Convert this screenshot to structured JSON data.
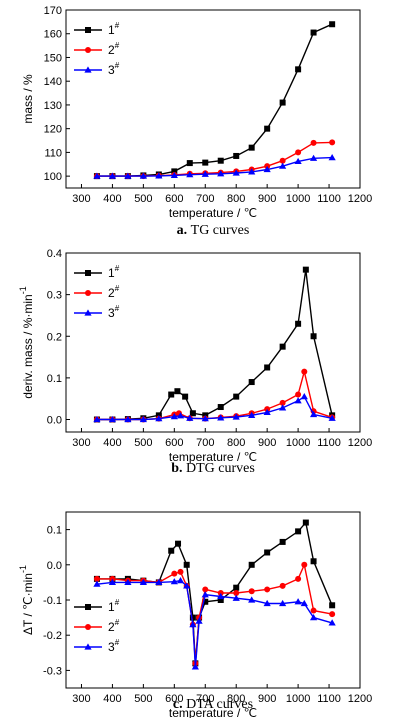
{
  "chart_data": [
    {
      "type": "line",
      "caption_letter": "a.",
      "caption_text": "TG curves",
      "xlabel": "temperature / ℃",
      "ylabel": "mass / %",
      "xlim": [
        250,
        1200
      ],
      "ylim": [
        95,
        170
      ],
      "xticks": [
        300,
        400,
        500,
        600,
        700,
        800,
        900,
        1000,
        1100,
        1200
      ],
      "yticks": [
        100,
        110,
        120,
        130,
        140,
        150,
        160,
        170
      ],
      "ytick_labels": [
        "100",
        "110",
        "120",
        "130",
        "140",
        "150",
        "160",
        "170"
      ],
      "legend_position": "top-left",
      "grid": false,
      "series": [
        {
          "name": "1#",
          "sup": "#",
          "base": "1",
          "color": "#000000",
          "marker": "square",
          "x": [
            350,
            400,
            450,
            500,
            550,
            600,
            650,
            700,
            750,
            800,
            850,
            900,
            950,
            1000,
            1050,
            1110
          ],
          "y": [
            100,
            100,
            100,
            100.3,
            100.7,
            102,
            105.5,
            105.7,
            106.5,
            108.5,
            112,
            120,
            131,
            145,
            160.5,
            164
          ]
        },
        {
          "name": "2#",
          "sup": "#",
          "base": "2",
          "color": "#ff0000",
          "marker": "circle",
          "x": [
            350,
            400,
            450,
            500,
            550,
            600,
            650,
            700,
            750,
            800,
            850,
            900,
            950,
            1000,
            1050,
            1110
          ],
          "y": [
            100,
            100,
            100,
            100,
            100.2,
            100.5,
            101,
            101.2,
            101.5,
            102,
            102.8,
            104.2,
            106.5,
            110,
            114,
            114.2
          ]
        },
        {
          "name": "3#",
          "sup": "#",
          "base": "3",
          "color": "#0000ff",
          "marker": "triangle",
          "x": [
            350,
            400,
            450,
            500,
            550,
            600,
            650,
            700,
            750,
            800,
            850,
            900,
            950,
            1000,
            1050,
            1110
          ],
          "y": [
            100,
            100,
            100,
            100,
            100.1,
            100.3,
            100.6,
            100.8,
            101,
            101.3,
            101.8,
            102.8,
            104.2,
            106.2,
            107.5,
            107.8
          ]
        }
      ]
    },
    {
      "type": "line",
      "caption_letter": "b.",
      "caption_text": "DTG curves",
      "xlabel": "temperature / ℃",
      "ylabel": "deriv. mass / %·min",
      "ylabel_sup": "-1",
      "xlim": [
        250,
        1200
      ],
      "ylim": [
        -0.03,
        0.4
      ],
      "xticks": [
        300,
        400,
        500,
        600,
        700,
        800,
        900,
        1000,
        1100,
        1200
      ],
      "yticks": [
        0.0,
        0.1,
        0.2,
        0.3,
        0.4
      ],
      "ytick_labels": [
        "0.0",
        "0.1",
        "0.2",
        "0.3",
        "0.4"
      ],
      "legend_position": "top-left",
      "grid": false,
      "series": [
        {
          "name": "1#",
          "sup": "#",
          "base": "1",
          "color": "#000000",
          "marker": "square",
          "x": [
            350,
            400,
            450,
            500,
            550,
            590,
            610,
            635,
            660,
            700,
            750,
            800,
            850,
            900,
            950,
            1000,
            1025,
            1050,
            1110
          ],
          "y": [
            0,
            0,
            0.001,
            0.003,
            0.01,
            0.06,
            0.068,
            0.055,
            0.015,
            0.01,
            0.03,
            0.055,
            0.09,
            0.125,
            0.175,
            0.23,
            0.36,
            0.2,
            0.01
          ]
        },
        {
          "name": "2#",
          "sup": "#",
          "base": "2",
          "color": "#ff0000",
          "marker": "circle",
          "x": [
            350,
            400,
            450,
            500,
            550,
            600,
            615,
            650,
            700,
            750,
            800,
            850,
            900,
            950,
            1000,
            1020,
            1050,
            1110
          ],
          "y": [
            0,
            0,
            0,
            0,
            0.002,
            0.012,
            0.015,
            0.003,
            0.002,
            0.005,
            0.008,
            0.015,
            0.025,
            0.04,
            0.06,
            0.115,
            0.02,
            0.005
          ]
        },
        {
          "name": "3#",
          "sup": "#",
          "base": "3",
          "color": "#0000ff",
          "marker": "triangle",
          "x": [
            350,
            400,
            450,
            500,
            550,
            600,
            620,
            650,
            700,
            750,
            800,
            850,
            900,
            950,
            1000,
            1020,
            1050,
            1110
          ],
          "y": [
            0,
            0,
            0,
            0,
            0.002,
            0.007,
            0.009,
            0.003,
            0.002,
            0.004,
            0.006,
            0.01,
            0.017,
            0.028,
            0.045,
            0.055,
            0.012,
            0.003
          ]
        }
      ]
    },
    {
      "type": "line",
      "caption_letter": "c.",
      "caption_text": "DTA curves",
      "xlabel": "temperature / ℃",
      "ylabel": "ΔT / ℃·min",
      "ylabel_sup": "-1",
      "xlim": [
        250,
        1200
      ],
      "ylim": [
        -0.35,
        0.15
      ],
      "xticks": [
        300,
        400,
        500,
        600,
        700,
        800,
        900,
        1000,
        1100,
        1200
      ],
      "yticks": [
        -0.3,
        -0.2,
        -0.1,
        0.0,
        0.1
      ],
      "ytick_labels": [
        "-0.3",
        "-0.2",
        "-0.1",
        "0.0",
        "0.1"
      ],
      "legend_position": "bottom-left",
      "grid": false,
      "series": [
        {
          "name": "1#",
          "sup": "#",
          "base": "1",
          "color": "#000000",
          "marker": "square",
          "x": [
            350,
            400,
            450,
            500,
            550,
            590,
            612,
            640,
            660,
            668,
            680,
            700,
            750,
            800,
            850,
            900,
            950,
            1000,
            1025,
            1050,
            1110
          ],
          "y": [
            -0.04,
            -0.04,
            -0.04,
            -0.045,
            -0.05,
            0.04,
            0.06,
            0.0,
            -0.15,
            -0.28,
            -0.15,
            -0.105,
            -0.1,
            -0.065,
            0.0,
            0.035,
            0.065,
            0.095,
            0.12,
            0.01,
            -0.115
          ]
        },
        {
          "name": "2#",
          "sup": "#",
          "base": "2",
          "color": "#ff0000",
          "marker": "circle",
          "x": [
            350,
            400,
            450,
            500,
            550,
            600,
            620,
            640,
            660,
            668,
            680,
            700,
            750,
            800,
            850,
            900,
            950,
            1000,
            1020,
            1050,
            1110
          ],
          "y": [
            -0.04,
            -0.04,
            -0.045,
            -0.045,
            -0.05,
            -0.025,
            -0.02,
            -0.06,
            -0.17,
            -0.28,
            -0.15,
            -0.07,
            -0.08,
            -0.08,
            -0.075,
            -0.07,
            -0.06,
            -0.04,
            0.0,
            -0.13,
            -0.14
          ]
        },
        {
          "name": "3#",
          "sup": "#",
          "base": "3",
          "color": "#0000ff",
          "marker": "triangle",
          "x": [
            350,
            400,
            450,
            500,
            550,
            600,
            620,
            640,
            660,
            668,
            680,
            700,
            750,
            800,
            850,
            900,
            950,
            1000,
            1020,
            1050,
            1110
          ],
          "y": [
            -0.055,
            -0.05,
            -0.05,
            -0.05,
            -0.05,
            -0.048,
            -0.045,
            -0.06,
            -0.17,
            -0.29,
            -0.16,
            -0.085,
            -0.09,
            -0.095,
            -0.1,
            -0.11,
            -0.11,
            -0.105,
            -0.11,
            -0.15,
            -0.165
          ]
        }
      ]
    }
  ]
}
